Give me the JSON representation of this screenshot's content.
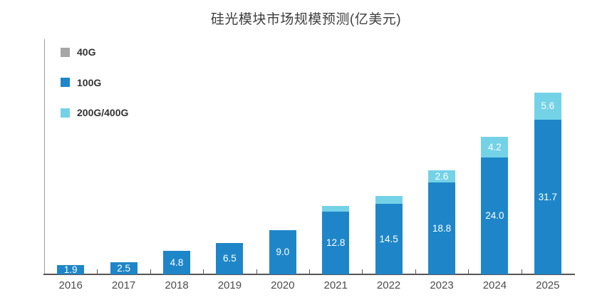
{
  "chart_data": {
    "type": "bar",
    "stacked": true,
    "title": "硅光模块市场规模预测(亿美元)",
    "categories": [
      "2016",
      "2017",
      "2018",
      "2019",
      "2020",
      "2021",
      "2022",
      "2023",
      "2024",
      "2025"
    ],
    "series": [
      {
        "name": "40G",
        "color": "#a6a6a6",
        "values": [
          0,
          0,
          0,
          0,
          0,
          0,
          0,
          0,
          0,
          0
        ],
        "labels": [
          "",
          "",
          "",
          "",
          "",
          "",
          "",
          "",
          "",
          ""
        ]
      },
      {
        "name": "100G",
        "color": "#1e86c8",
        "values": [
          1.9,
          2.5,
          4.8,
          6.5,
          9.0,
          12.8,
          14.5,
          18.8,
          24.0,
          31.7
        ],
        "labels": [
          "1.9",
          "2.5",
          "4.8",
          "6.5",
          "9.0",
          "12.8",
          "14.5",
          "18.8",
          "24.0",
          "31.7"
        ]
      },
      {
        "name": "200G/400G",
        "color": "#74d2e7",
        "values": [
          0,
          0,
          0,
          0,
          0,
          1.2,
          1.6,
          2.6,
          4.2,
          5.6
        ],
        "labels": [
          "",
          "",
          "",
          "",
          "",
          "",
          "",
          "2.6",
          "4.2",
          "5.6"
        ]
      }
    ],
    "xlabel": "",
    "ylabel": "",
    "ylim": [
      0,
      48
    ],
    "grid": false,
    "legend_position": "top-left-vertical",
    "label_color": "#ffffff"
  }
}
